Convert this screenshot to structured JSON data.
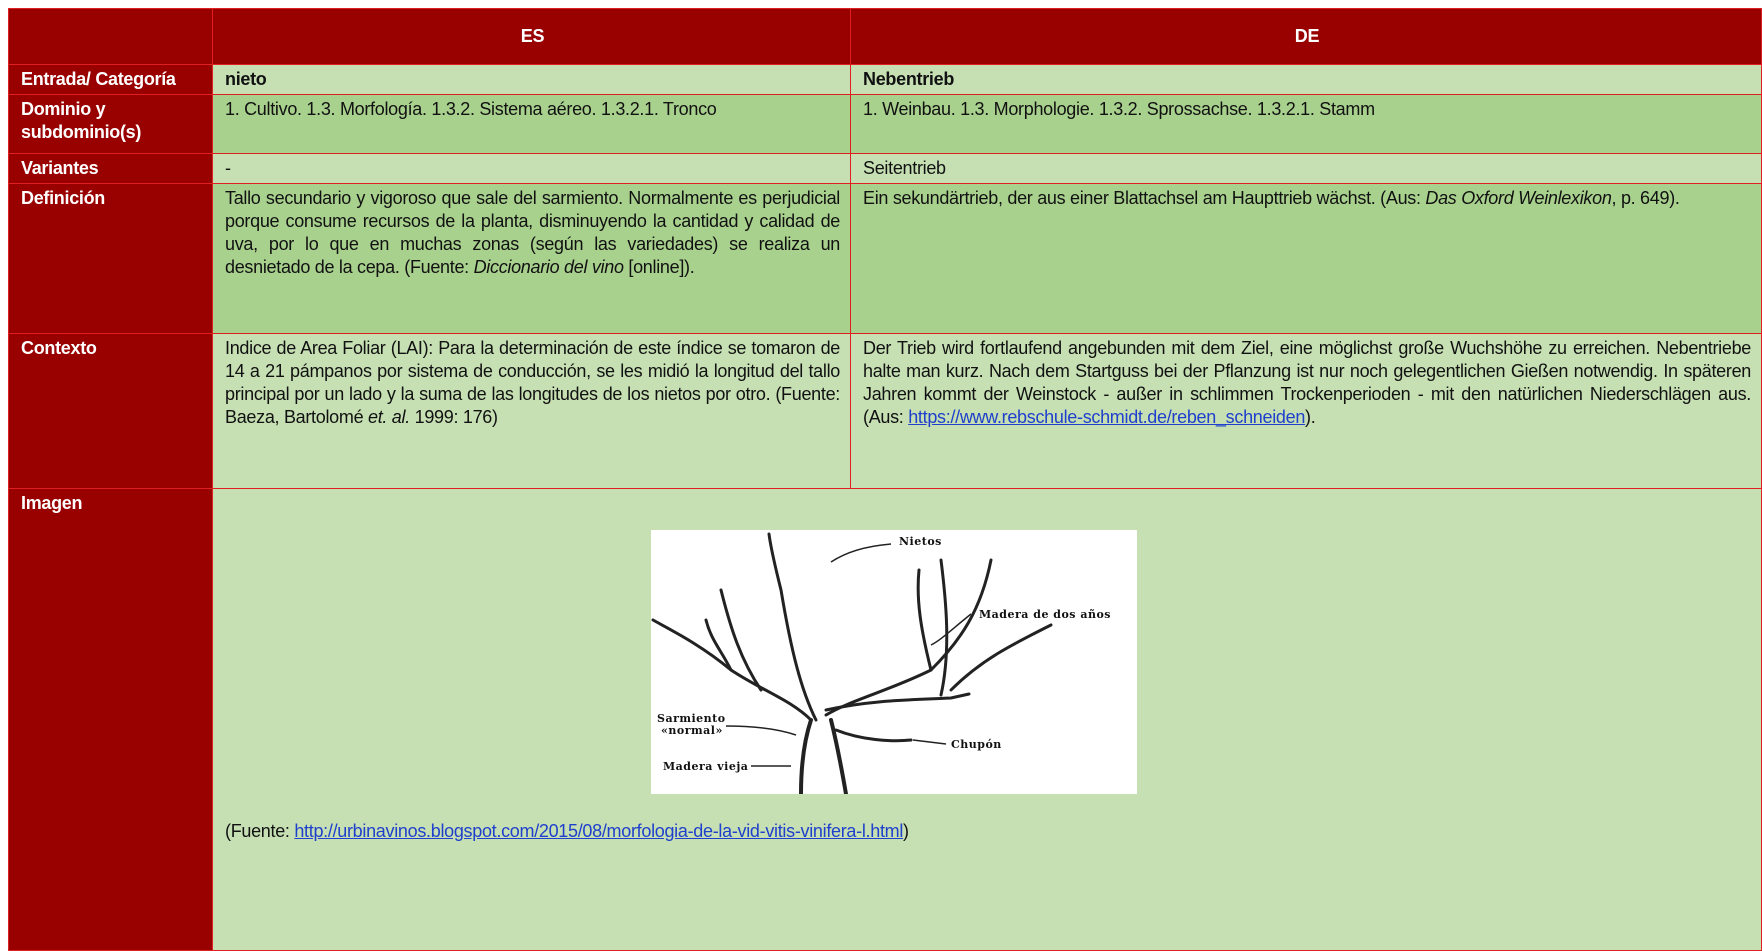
{
  "header": {
    "es": "ES",
    "de": "DE"
  },
  "rows": [
    {
      "label": "Entrada/ Categoría",
      "es": [
        "nieto"
      ],
      "de": [
        "Nebentrieb"
      ]
    },
    {
      "label": "Dominio y subdominio(s)",
      "es": [
        "1. Cultivo. 1.3. Morfología. 1.3.2. Sistema aéreo. 1.3.2.1. Tronco"
      ],
      "de": [
        "1. Weinbau. 1.3. Morphologie. 1.3.2. Sprossachse. 1.3.2.1. Stamm"
      ]
    },
    {
      "label": "Variantes",
      "es": [
        "-"
      ],
      "de": [
        "Seitentrieb"
      ]
    },
    {
      "label": "Definición",
      "es": [
        "Tallo secundario y vigoroso que sale del sarmiento. Normalmente es perjudicial porque consume recursos de la planta, disminuyendo la cantidad y calidad de uva, por lo que en muchas zonas (según las variedades) se realiza un desnietado de la cepa. (Fuente: ",
        "Diccionario del vino",
        " [online])."
      ],
      "de": [
        "Ein sekundärtrieb, der aus einer Blattachsel am Haupttrieb wächst. (Aus: ",
        "Das Oxford Weinlexikon",
        ", p. 649)."
      ]
    },
    {
      "label": "Contexto",
      "es": [
        "Indice de Area Foliar (LAI): Para la determinación de este índice se tomaron de 14 a 21 pámpanos por sistema de conducción, se les midió la longitud del tallo principal por un lado y la suma de las longitudes de los nietos por otro. (Fuente: Baeza, Bartolomé ",
        "et. al.",
        " 1999: 176)"
      ],
      "de": [
        "Der Trieb wird fortlaufend angebunden mit dem Ziel, eine möglichst große Wuchshöhe zu erreichen. Nebentriebe halte man kurz. Nach dem Startguss bei der Pflanzung ist nur noch gelegentlichen Gießen notwendig. In späteren Jahren kommt der Weinstock - außer in schlimmen Trockenperioden - mit den natürlichen Niederschlägen aus. (Aus:  ",
        "https://www.rebschule-schmidt.de/reben_schneiden",
        ")."
      ]
    }
  ],
  "image_row": {
    "label": "Imagen",
    "image_labels": [
      "Nietos",
      "Madera de dos años",
      "Sarmiento",
      "«normal»",
      "Chupón",
      "Madera vieja"
    ],
    "source": [
      "(Fuente: ",
      "http://urbinavinos.blogspot.com/2015/08/morfologia-de-la-vid-vitis-vinifera-l.html",
      ")"
    ]
  }
}
